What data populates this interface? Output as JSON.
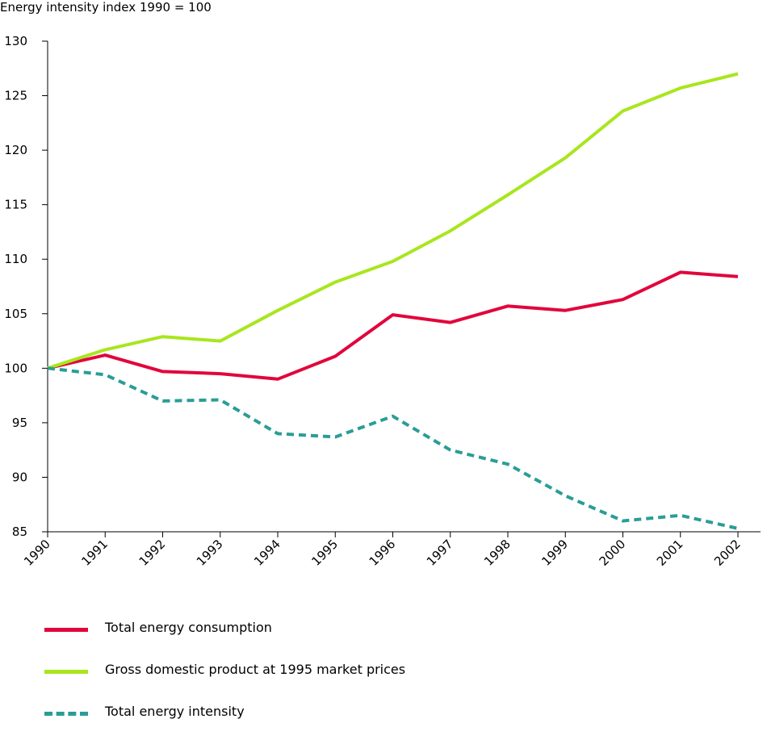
{
  "chart_data": {
    "type": "line",
    "title": "",
    "ylabel": "Energy intensity index 1990 = 100",
    "xlabel": "",
    "ylim": [
      85,
      130
    ],
    "yticks": [
      85,
      90,
      95,
      100,
      105,
      110,
      115,
      120,
      125,
      130
    ],
    "x": [
      "1990",
      "1991",
      "1992",
      "1993",
      "1994",
      "1995",
      "1996",
      "1997",
      "1998",
      "1999",
      "2000",
      "2001",
      "2002"
    ],
    "grid": false,
    "legend_position": "bottom",
    "series": [
      {
        "name": "Total energy consumption",
        "color": "#e1063c",
        "style": "solid",
        "values": [
          100,
          101.2,
          99.7,
          99.5,
          99.0,
          101.1,
          104.9,
          104.2,
          105.7,
          105.3,
          106.3,
          108.8,
          108.4
        ]
      },
      {
        "name": "Gross domestic product at 1995 market prices",
        "color": "#a8e61e",
        "style": "solid",
        "values": [
          100,
          101.7,
          102.9,
          102.5,
          105.3,
          107.9,
          109.8,
          112.6,
          115.9,
          119.3,
          123.6,
          125.7,
          127.0
        ]
      },
      {
        "name": "Total energy intensity",
        "color": "#2a9d96",
        "style": "dashed",
        "values": [
          100,
          99.4,
          97.0,
          97.1,
          94.0,
          93.7,
          95.6,
          92.5,
          91.2,
          88.3,
          86.0,
          86.5,
          85.3
        ]
      }
    ]
  }
}
